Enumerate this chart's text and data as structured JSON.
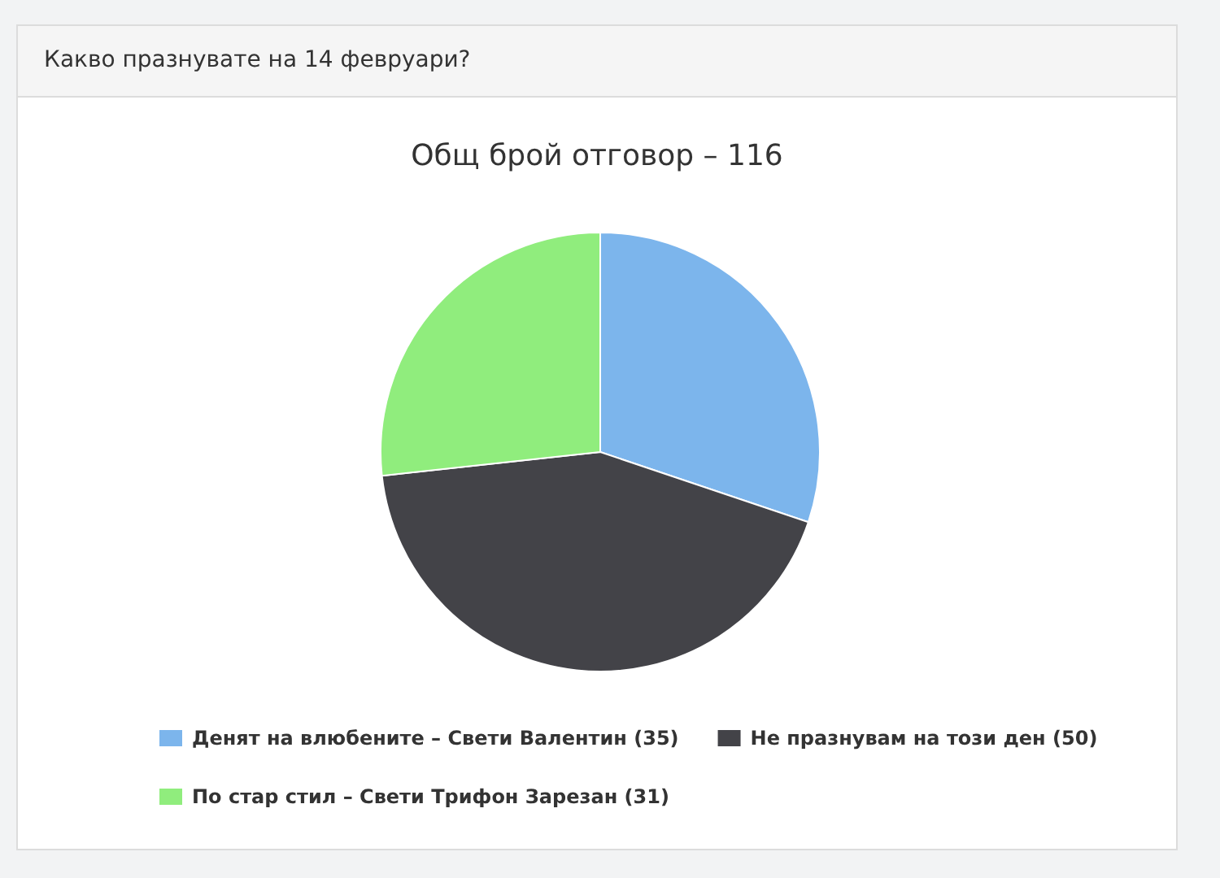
{
  "chart_data": {
    "type": "pie",
    "title": "Какво празнувате на 14 февруари?",
    "subtitle": "Общ брой отговор – 116",
    "categories": [
      "Денят на влюбените – Свети Валентин (35)",
      "Не празнувам на този ден (50)",
      "По стар стил – Свети Трифон Зарезан (31)"
    ],
    "values": [
      35,
      50,
      31
    ],
    "colors": [
      "#7cb5ec",
      "#434348",
      "#90ed7d"
    ],
    "legend": "bottom"
  }
}
